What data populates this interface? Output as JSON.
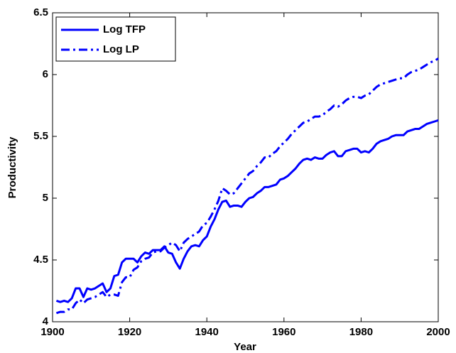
{
  "chart_data": {
    "type": "line",
    "xlabel": "Year",
    "ylabel": "Productivity",
    "x": [
      1901,
      1902,
      1903,
      1904,
      1905,
      1906,
      1907,
      1908,
      1909,
      1910,
      1911,
      1912,
      1913,
      1914,
      1915,
      1916,
      1917,
      1918,
      1919,
      1920,
      1921,
      1922,
      1923,
      1924,
      1925,
      1926,
      1927,
      1928,
      1929,
      1930,
      1931,
      1932,
      1933,
      1934,
      1935,
      1936,
      1937,
      1938,
      1939,
      1940,
      1941,
      1942,
      1943,
      1944,
      1945,
      1946,
      1947,
      1948,
      1949,
      1950,
      1951,
      1952,
      1953,
      1954,
      1955,
      1956,
      1957,
      1958,
      1959,
      1960,
      1961,
      1962,
      1963,
      1964,
      1965,
      1966,
      1967,
      1968,
      1969,
      1970,
      1971,
      1972,
      1973,
      1974,
      1975,
      1976,
      1977,
      1978,
      1979,
      1980,
      1981,
      1982,
      1983,
      1984,
      1985,
      1986,
      1987,
      1988,
      1989,
      1990,
      1991,
      1992,
      1993,
      1994,
      1995,
      1996,
      1997,
      1998,
      1999,
      2000
    ],
    "series": [
      {
        "name": "Log TFP",
        "color": "#0000ff",
        "style": "solid",
        "values": [
          4.17,
          4.16,
          4.17,
          4.16,
          4.19,
          4.27,
          4.27,
          4.2,
          4.27,
          4.26,
          4.27,
          4.29,
          4.31,
          4.24,
          4.27,
          4.37,
          4.38,
          4.48,
          4.51,
          4.51,
          4.51,
          4.48,
          4.53,
          4.56,
          4.55,
          4.58,
          4.58,
          4.58,
          4.61,
          4.56,
          4.55,
          4.48,
          4.43,
          4.51,
          4.57,
          4.61,
          4.62,
          4.61,
          4.66,
          4.69,
          4.77,
          4.83,
          4.91,
          4.97,
          4.98,
          4.93,
          4.94,
          4.94,
          4.93,
          4.97,
          5.0,
          5.01,
          5.04,
          5.06,
          5.09,
          5.09,
          5.1,
          5.11,
          5.15,
          5.16,
          5.18,
          5.21,
          5.24,
          5.28,
          5.31,
          5.32,
          5.31,
          5.33,
          5.32,
          5.32,
          5.35,
          5.37,
          5.38,
          5.34,
          5.34,
          5.38,
          5.39,
          5.4,
          5.4,
          5.37,
          5.38,
          5.37,
          5.4,
          5.44,
          5.46,
          5.47,
          5.48,
          5.5,
          5.51,
          5.51,
          5.51,
          5.54,
          5.55,
          5.56,
          5.56,
          5.58,
          5.6,
          5.61,
          5.62,
          5.63
        ]
      },
      {
        "name": "Log LP",
        "color": "#0000ff",
        "style": "dash-dot",
        "values": [
          4.07,
          4.08,
          4.08,
          4.1,
          4.1,
          4.15,
          4.18,
          4.15,
          4.18,
          4.19,
          4.2,
          4.22,
          4.24,
          4.2,
          4.22,
          4.22,
          4.21,
          4.32,
          4.36,
          4.36,
          4.42,
          4.44,
          4.49,
          4.51,
          4.52,
          4.56,
          4.57,
          4.57,
          4.6,
          4.62,
          4.64,
          4.62,
          4.57,
          4.64,
          4.67,
          4.69,
          4.71,
          4.73,
          4.78,
          4.8,
          4.85,
          4.91,
          4.98,
          5.08,
          5.06,
          5.03,
          5.04,
          5.08,
          5.12,
          5.16,
          5.2,
          5.22,
          5.26,
          5.29,
          5.33,
          5.33,
          5.36,
          5.38,
          5.42,
          5.45,
          5.48,
          5.52,
          5.55,
          5.58,
          5.61,
          5.62,
          5.64,
          5.66,
          5.66,
          5.67,
          5.7,
          5.72,
          5.75,
          5.74,
          5.76,
          5.79,
          5.81,
          5.82,
          5.82,
          5.81,
          5.83,
          5.84,
          5.87,
          5.9,
          5.92,
          5.93,
          5.94,
          5.95,
          5.96,
          5.97,
          5.97,
          6.0,
          6.02,
          6.03,
          6.04,
          6.06,
          6.08,
          6.1,
          6.11,
          6.13
        ]
      }
    ],
    "xlim": [
      1900,
      2000
    ],
    "xticks": [
      1900,
      1920,
      1940,
      1960,
      1980,
      2000
    ],
    "ylim": [
      4,
      6.5
    ],
    "yticks": [
      4,
      4.5,
      5,
      5.5,
      6,
      6.5
    ],
    "grid": false,
    "legend": "upper-left"
  }
}
